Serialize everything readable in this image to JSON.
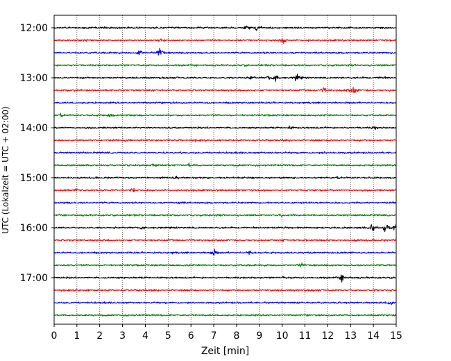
{
  "chart_data": {
    "type": "line",
    "title": "",
    "xlabel": "Zeit  [min]",
    "ylabel": "UTC (Lokalzeit = UTC + 02:00)",
    "xlim": [
      0,
      15
    ],
    "x_ticks": [
      "0",
      "1",
      "2",
      "3",
      "4",
      "5",
      "6",
      "7",
      "8",
      "9",
      "10",
      "11",
      "12",
      "13",
      "14",
      "15"
    ],
    "y_ticks": [
      "12:00",
      "13:00",
      "14:00",
      "15:00",
      "16:00",
      "17:00"
    ],
    "grid": "vertical dotted lines at each minute",
    "legend": "none",
    "trace_colors": [
      "#000000",
      "#ff0000",
      "#0000ff",
      "#008000"
    ],
    "traces": [
      {
        "start": "12:00",
        "color": "#000000",
        "events": [
          [
            2.2,
            1.6
          ],
          [
            8.4,
            3.2
          ],
          [
            8.9,
            4.2
          ]
        ]
      },
      {
        "start": "12:15",
        "color": "#ff0000",
        "events": [
          [
            4.6,
            2.6
          ],
          [
            10.0,
            4.0
          ],
          [
            11.1,
            1.3
          ]
        ]
      },
      {
        "start": "12:30",
        "color": "#0000ff",
        "events": [
          [
            3.7,
            5.5
          ],
          [
            4.6,
            7.0
          ],
          [
            6.4,
            1.4
          ]
        ]
      },
      {
        "start": "12:45",
        "color": "#008000",
        "events": [
          [
            8.3,
            1.4
          ]
        ]
      },
      {
        "start": "13:00",
        "color": "#000000",
        "events": [
          [
            8.6,
            3.0
          ],
          [
            9.4,
            3.5
          ],
          [
            9.7,
            4.2
          ],
          [
            10.6,
            5.0
          ],
          [
            14.3,
            3.0
          ]
        ]
      },
      {
        "start": "13:15",
        "color": "#ff0000",
        "events": [
          [
            11.8,
            2.6
          ],
          [
            12.8,
            2.2
          ],
          [
            13.1,
            4.8
          ]
        ]
      },
      {
        "start": "13:30",
        "color": "#0000ff",
        "events": [
          [
            6.7,
            1.4
          ]
        ]
      },
      {
        "start": "13:45",
        "color": "#008000",
        "events": [
          [
            0.3,
            2.3
          ],
          [
            2.4,
            2.8
          ]
        ]
      },
      {
        "start": "14:00",
        "color": "#000000",
        "events": [
          [
            10.3,
            2.4
          ],
          [
            14.0,
            2.6
          ]
        ]
      },
      {
        "start": "14:15",
        "color": "#ff0000",
        "events": [
          [
            6.2,
            1.3
          ],
          [
            12.1,
            1.5
          ]
        ]
      },
      {
        "start": "14:30",
        "color": "#0000ff",
        "events": [
          [
            11.8,
            1.6
          ]
        ]
      },
      {
        "start": "14:45",
        "color": "#008000",
        "events": [
          [
            4.3,
            2.8
          ],
          [
            5.9,
            3.0
          ]
        ]
      },
      {
        "start": "15:00",
        "color": "#000000",
        "events": [
          [
            5.3,
            2.5
          ],
          [
            12.4,
            1.6
          ]
        ]
      },
      {
        "start": "15:15",
        "color": "#ff0000",
        "events": [
          [
            1.0,
            2.4
          ],
          [
            3.4,
            3.6
          ],
          [
            6.0,
            1.4
          ]
        ]
      },
      {
        "start": "15:30",
        "color": "#0000ff",
        "events": [
          [
            0.5,
            2.4
          ],
          [
            5.5,
            2.2
          ],
          [
            9.6,
            1.4
          ]
        ]
      },
      {
        "start": "15:45",
        "color": "#008000",
        "events": [
          [
            9.9,
            3.0
          ],
          [
            11.3,
            1.3
          ]
        ]
      },
      {
        "start": "16:00",
        "color": "#000000",
        "events": [
          [
            3.8,
            2.3
          ],
          [
            13.9,
            6.0
          ],
          [
            14.5,
            5.0
          ],
          [
            14.9,
            5.0
          ]
        ]
      },
      {
        "start": "16:15",
        "color": "#ff0000",
        "events": [
          [
            10.0,
            2.2
          ],
          [
            13.2,
            1.5
          ]
        ]
      },
      {
        "start": "16:30",
        "color": "#0000ff",
        "events": [
          [
            5.2,
            1.4
          ],
          [
            6.9,
            6.0
          ],
          [
            8.5,
            3.2
          ]
        ]
      },
      {
        "start": "16:45",
        "color": "#008000",
        "events": [
          [
            10.8,
            2.6
          ]
        ]
      },
      {
        "start": "17:00",
        "color": "#000000",
        "events": [
          [
            10.0,
            1.6
          ],
          [
            12.6,
            5.0
          ]
        ]
      },
      {
        "start": "17:15",
        "color": "#ff0000",
        "events": [
          [
            1.1,
            1.6
          ],
          [
            14.1,
            1.5
          ]
        ]
      },
      {
        "start": "17:30",
        "color": "#0000ff",
        "events": [
          [
            14.7,
            3.0
          ]
        ]
      },
      {
        "start": "17:45",
        "color": "#008000",
        "events": [
          [
            14.8,
            1.5
          ]
        ]
      }
    ]
  }
}
